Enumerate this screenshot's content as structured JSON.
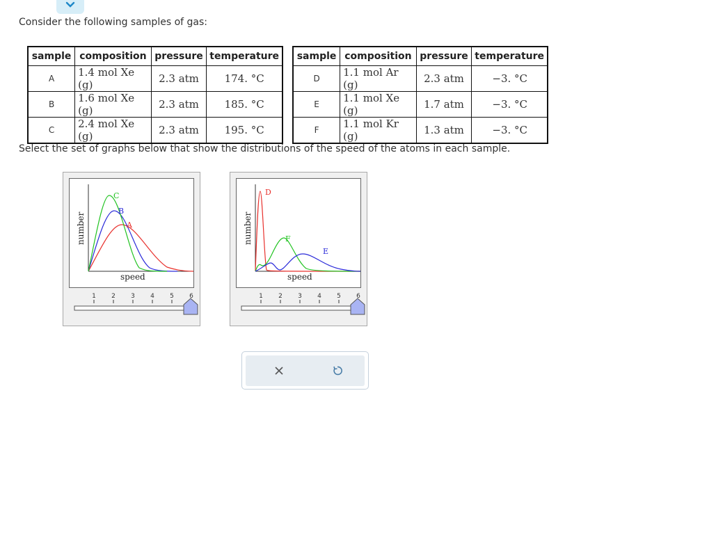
{
  "intro_text": "Consider the following samples of gas:",
  "question_text": "Select the set of graphs below that show the distributions of the speed of the atoms in each sample.",
  "table_headers": [
    "sample",
    "composition",
    "pressure",
    "temperature"
  ],
  "samples_left": [
    {
      "sample": "A",
      "composition": "1.4 mol Xe (g)",
      "pressure": "2.3 atm",
      "temperature": "174. °C"
    },
    {
      "sample": "B",
      "composition": "1.6 mol Xe (g)",
      "pressure": "2.3 atm",
      "temperature": "185. °C"
    },
    {
      "sample": "C",
      "composition": "2.4 mol Xe (g)",
      "pressure": "2.3 atm",
      "temperature": "195. °C"
    }
  ],
  "samples_right": [
    {
      "sample": "D",
      "composition": "1.1 mol Ar (g)",
      "pressure": "2.3 atm",
      "temperature": "−3. °C"
    },
    {
      "sample": "E",
      "composition": "1.1 mol Xe (g)",
      "pressure": "1.7 atm",
      "temperature": "−3. °C"
    },
    {
      "sample": "F",
      "composition": "1.1 mol Kr (g)",
      "pressure": "1.3 atm",
      "temperature": "−3. °C"
    }
  ],
  "graph_left": {
    "y_label": "number",
    "x_label": "speed",
    "curve_labels": {
      "A": "A",
      "B": "B",
      "C": "C"
    },
    "zoom_ticks": [
      "1",
      "2",
      "3",
      "4",
      "5",
      "6"
    ],
    "zoom_level": 6
  },
  "graph_right": {
    "y_label": "number",
    "x_label": "speed",
    "curve_labels": {
      "D": "D",
      "E": "E",
      "F": "F"
    },
    "zoom_ticks": [
      "1",
      "2",
      "3",
      "4",
      "5",
      "6"
    ],
    "zoom_level": 6
  },
  "colors": {
    "red": "#e8302c",
    "blue": "#2b2bd9",
    "green": "#22c322",
    "slider_handle": "#a9b4f3"
  },
  "icons": {
    "toggle": "chevron-down-icon",
    "clear": "close-icon",
    "reset": "undo-icon"
  }
}
